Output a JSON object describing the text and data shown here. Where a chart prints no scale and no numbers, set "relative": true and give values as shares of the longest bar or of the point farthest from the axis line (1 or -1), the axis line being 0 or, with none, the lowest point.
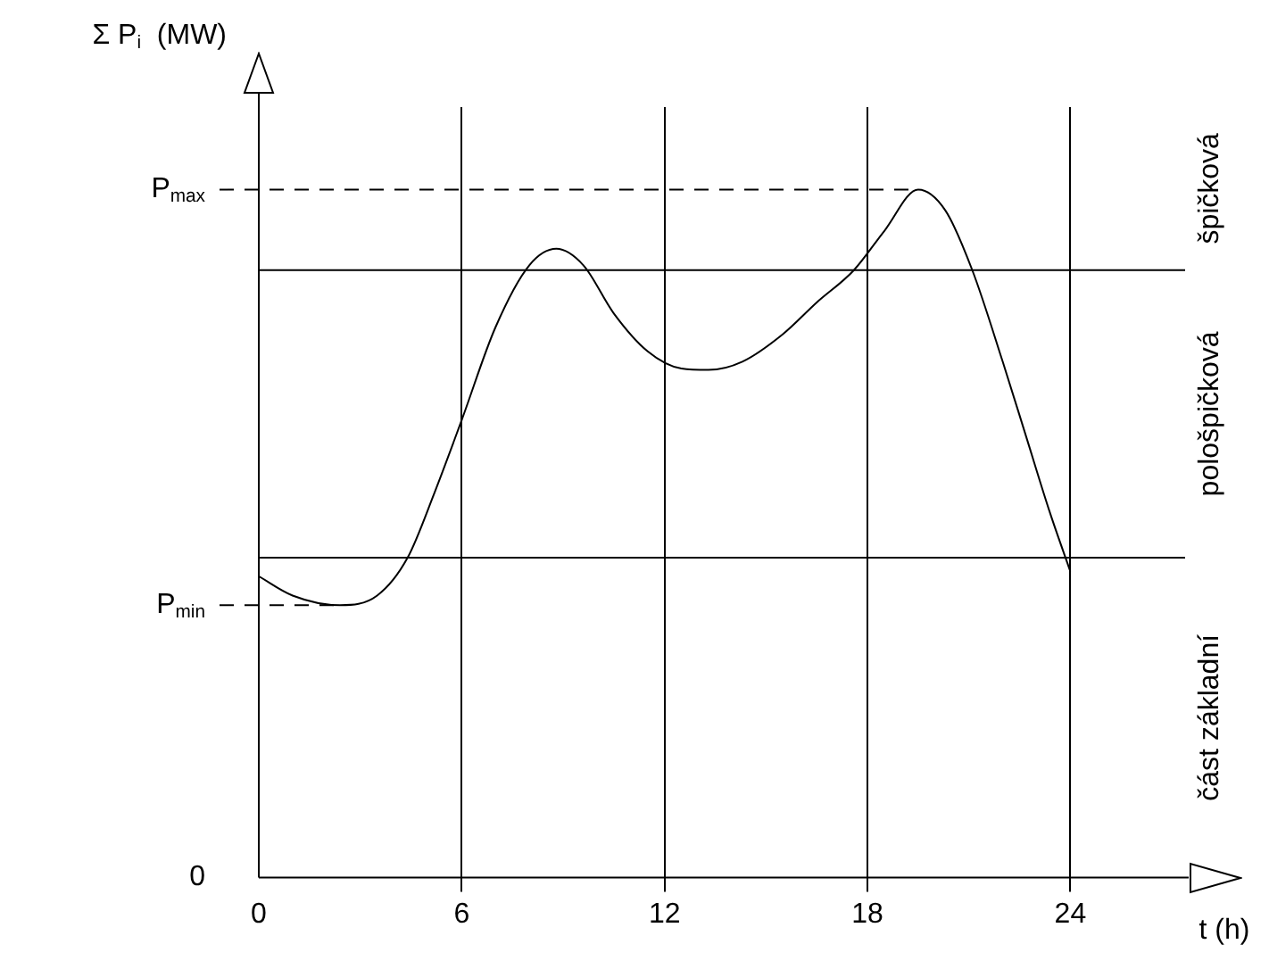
{
  "chart_data": {
    "type": "line",
    "relative": true,
    "xlabel": "t (h)",
    "ylabel": "Σ P$_{i}$  (MW)",
    "xlim": [
      0,
      27.5
    ],
    "xticks": [
      0,
      6,
      12,
      18,
      24
    ],
    "grid": "x",
    "marker": "none",
    "line_style": "solid",
    "series": [
      {
        "color": "#000000",
        "x": [
          0,
          1,
          2.4,
          3.5,
          4.4,
          5.2,
          6,
          7,
          8,
          8.8,
          9.6,
          10.5,
          11.5,
          12.5,
          13.3,
          14.3,
          15.5,
          16.5,
          17.6,
          18.5,
          19.5,
          20.3,
          21.1,
          22,
          22.7,
          23.4,
          24
        ],
        "values": [
          0.438,
          0.41,
          0.396,
          0.41,
          0.465,
          0.56,
          0.665,
          0.8,
          0.89,
          0.914,
          0.89,
          0.82,
          0.765,
          0.74,
          0.738,
          0.75,
          0.79,
          0.836,
          0.883,
          0.94,
          1.0,
          0.97,
          0.883,
          0.75,
          0.64,
          0.53,
          0.445
        ]
      }
    ],
    "ref_lines": [
      {
        "axis": "y",
        "value": 1.0,
        "label": "P$_{max}$",
        "line_style": "dashed"
      },
      {
        "axis": "y",
        "value": 0.883,
        "line_style": "solid"
      },
      {
        "axis": "y",
        "value": 0.465,
        "line_style": "solid"
      },
      {
        "axis": "y",
        "value": 0.396,
        "label": "P$_{min}$",
        "line_style": "dashed"
      }
    ],
    "annotations": [
      "0",
      "špičková",
      "pološpičková",
      "část základní"
    ]
  }
}
